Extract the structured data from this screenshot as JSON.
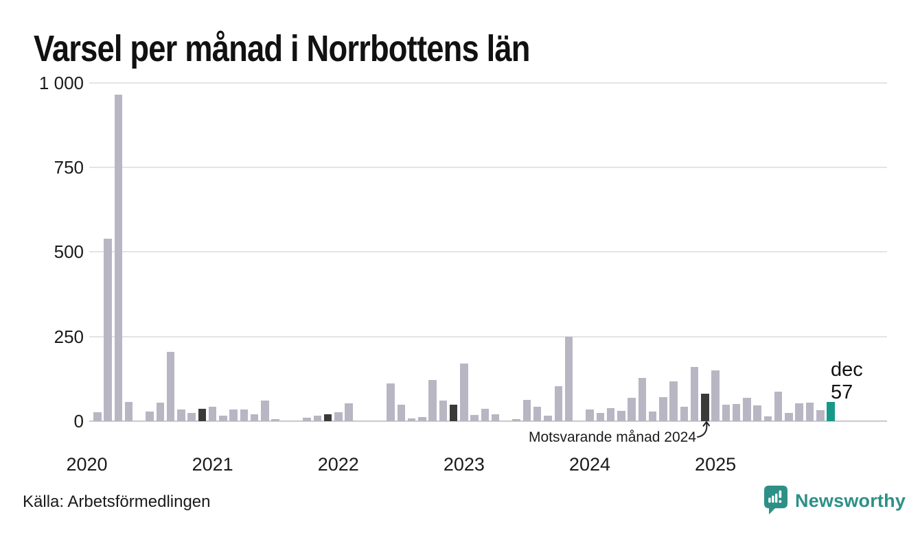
{
  "title": "Varsel per månad i Norrbottens län",
  "source": "Källa: Arbetsförmedlingen",
  "branding": {
    "name": "Newsworthy",
    "logo_icon": "speech-bubble-bar-chart-icon",
    "color": "#2d9087"
  },
  "annotation": {
    "text": "Motsvarande månad 2024",
    "target_month": "2024-12"
  },
  "current_label": {
    "month": "dec",
    "value": "57"
  },
  "chart_data": {
    "type": "bar",
    "title": "Varsel per månad i Norrbottens län",
    "x_start": "2020-01",
    "x_end": "2025-12",
    "x_tick_labels": [
      "2020",
      "2021",
      "2022",
      "2023",
      "2024",
      "2025"
    ],
    "y_ticks": [
      0,
      250,
      500,
      750,
      1000
    ],
    "y_tick_labels": [
      "0",
      "250",
      "500",
      "750",
      "1 000"
    ],
    "ylim": [
      0,
      1000
    ],
    "grid": true,
    "legend": false,
    "series": [
      {
        "year": 2020,
        "values": [
          0,
          26,
          540,
          965,
          57,
          0,
          29,
          55,
          205,
          34,
          24,
          37
        ]
      },
      {
        "year": 2021,
        "values": [
          42,
          16,
          34,
          34,
          20,
          61,
          7,
          0,
          0,
          10,
          17,
          20
        ]
      },
      {
        "year": 2022,
        "values": [
          26,
          53,
          0,
          0,
          0,
          112,
          48,
          9,
          13,
          122,
          60,
          48
        ]
      },
      {
        "year": 2023,
        "values": [
          170,
          18,
          36,
          20,
          0,
          6,
          63,
          43,
          16,
          104,
          250,
          0
        ]
      },
      {
        "year": 2024,
        "values": [
          34,
          25,
          39,
          30,
          68,
          128,
          28,
          71,
          118,
          42,
          160,
          82
        ]
      },
      {
        "year": 2025,
        "values": [
          150,
          48,
          50,
          70,
          47,
          14,
          87,
          24,
          52,
          55,
          32,
          57
        ]
      }
    ],
    "highlight_dark_months": [
      "2020-12",
      "2021-12",
      "2022-12",
      "2023-12",
      "2024-12"
    ],
    "highlight_dark_meaning": "Motsvarande månad 2024",
    "current_month": {
      "month": "2025-12",
      "label": "dec",
      "value": 57
    },
    "colors": {
      "bar": "#b9b6c3",
      "compare_month": "#3a3a3a",
      "current_month": "#17998a"
    }
  }
}
